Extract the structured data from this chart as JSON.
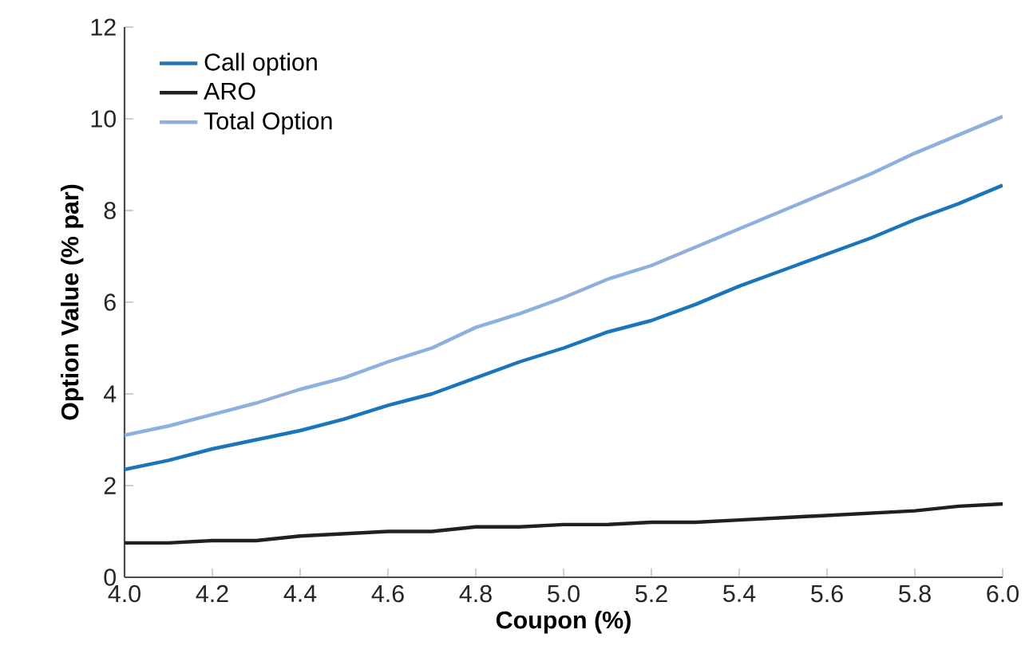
{
  "chart_data": {
    "type": "line",
    "xlabel": "Coupon (%)",
    "ylabel": "Option Value (% par)",
    "x": [
      4.0,
      4.1,
      4.2,
      4.3,
      4.4,
      4.5,
      4.6,
      4.7,
      4.8,
      4.9,
      5.0,
      5.1,
      5.2,
      5.3,
      5.4,
      5.5,
      5.6,
      5.7,
      5.8,
      5.9,
      6.0
    ],
    "series": [
      {
        "name": "Call option",
        "color": "#1a75bb",
        "values": [
          2.35,
          2.55,
          2.8,
          3.0,
          3.2,
          3.45,
          3.75,
          4.0,
          4.35,
          4.7,
          5.0,
          5.35,
          5.6,
          5.95,
          6.35,
          6.7,
          7.05,
          7.4,
          7.8,
          8.15,
          8.55
        ]
      },
      {
        "name": "ARO",
        "color": "#231f20",
        "values": [
          0.75,
          0.75,
          0.8,
          0.8,
          0.9,
          0.95,
          1.0,
          1.0,
          1.1,
          1.1,
          1.15,
          1.15,
          1.2,
          1.2,
          1.25,
          1.3,
          1.35,
          1.4,
          1.45,
          1.55,
          1.6
        ]
      },
      {
        "name": "Total Option",
        "color": "#8fb0dd",
        "values": [
          3.1,
          3.3,
          3.55,
          3.8,
          4.1,
          4.35,
          4.7,
          5.0,
          5.45,
          5.75,
          6.1,
          6.5,
          6.8,
          7.2,
          7.6,
          8.0,
          8.4,
          8.8,
          9.25,
          9.65,
          10.05
        ]
      }
    ],
    "xlim": [
      4.0,
      6.0
    ],
    "ylim": [
      0,
      12
    ],
    "xticks": [
      {
        "value": 4.0,
        "label": "4.0"
      },
      {
        "value": 4.2,
        "label": "4.2"
      },
      {
        "value": 4.4,
        "label": "4.4"
      },
      {
        "value": 4.6,
        "label": "4.6"
      },
      {
        "value": 4.8,
        "label": "4.8"
      },
      {
        "value": 5.0,
        "label": "5.0"
      },
      {
        "value": 5.2,
        "label": "5.2"
      },
      {
        "value": 5.4,
        "label": "5.4"
      },
      {
        "value": 5.6,
        "label": "5.6"
      },
      {
        "value": 5.8,
        "label": "5.8"
      },
      {
        "value": 6.0,
        "label": "6.0"
      }
    ],
    "yticks": [
      0,
      2,
      4,
      6,
      8,
      10,
      12
    ],
    "legend": "top left",
    "grid": false,
    "marker": "none",
    "line_style": "solid"
  }
}
